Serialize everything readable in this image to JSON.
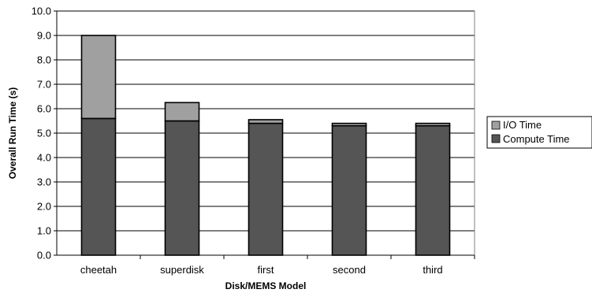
{
  "chart_data": {
    "type": "bar",
    "stacked": true,
    "title": "",
    "xlabel": "Disk/MEMS Model",
    "ylabel": "Overall Run Time (s)",
    "ylim": [
      0,
      10
    ],
    "ytick_step": 1,
    "yticks": [
      "0.0",
      "1.0",
      "2.0",
      "3.0",
      "4.0",
      "5.0",
      "6.0",
      "7.0",
      "8.0",
      "9.0",
      "10.0"
    ],
    "categories": [
      "cheetah",
      "superdisk",
      "first",
      "second",
      "third"
    ],
    "series": [
      {
        "name": "Compute Time",
        "values": [
          5.6,
          5.5,
          5.4,
          5.3,
          5.3
        ],
        "color": "#555555"
      },
      {
        "name": "I/O Time",
        "values": [
          3.4,
          0.75,
          0.15,
          0.1,
          0.1
        ],
        "color": "#a0a0a0"
      }
    ],
    "legend": {
      "position": "right",
      "entries": [
        "I/O Time",
        "Compute Time"
      ]
    },
    "grid": true
  }
}
